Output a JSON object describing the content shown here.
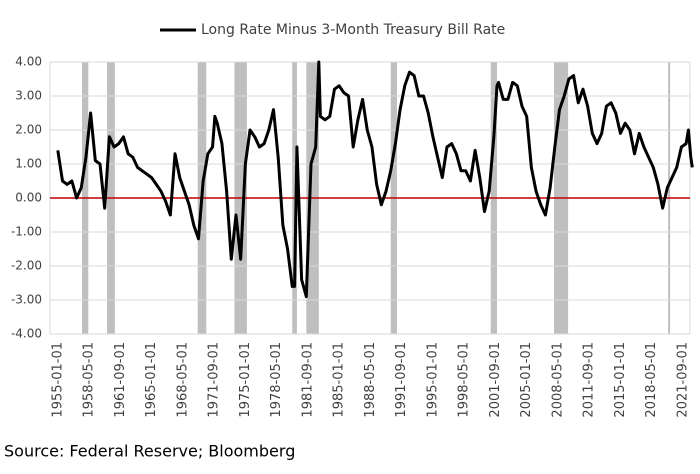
{
  "chart_data": {
    "type": "line",
    "legend": "Long Rate Minus 3-Month Treasury Bill Rate",
    "source": "Source: Federal Reserve; Bloomberg",
    "series": [
      {
        "name": "Long Rate Minus 3-Month Treasury Bill Rate",
        "color": "#000000",
        "x": [
          "1955-01-01",
          "1955-07-01",
          "1956-01-01",
          "1956-07-01",
          "1957-01-01",
          "1957-07-01",
          "1958-01-01",
          "1958-07-01",
          "1959-01-01",
          "1959-07-01",
          "1960-01-01",
          "1960-07-01",
          "1961-01-01",
          "1961-07-01",
          "1962-01-01",
          "1962-07-01",
          "1963-01-01",
          "1963-07-01",
          "1964-01-01",
          "1964-07-01",
          "1965-01-01",
          "1965-07-01",
          "1966-01-01",
          "1966-07-01",
          "1967-01-01",
          "1967-07-01",
          "1968-01-01",
          "1968-07-01",
          "1969-01-01",
          "1969-07-01",
          "1970-01-01",
          "1970-07-01",
          "1971-01-01",
          "1971-07-01",
          "1971-10-01",
          "1972-01-01",
          "1972-07-01",
          "1973-01-01",
          "1973-07-01",
          "1974-01-01",
          "1974-07-01",
          "1975-01-01",
          "1975-07-01",
          "1976-01-01",
          "1976-07-01",
          "1977-01-01",
          "1977-07-01",
          "1978-01-01",
          "1978-07-01",
          "1979-01-01",
          "1979-07-01",
          "1980-01-01",
          "1980-04-01",
          "1980-07-01",
          "1981-01-01",
          "1981-07-01",
          "1982-01-01",
          "1982-07-01",
          "1982-11-01",
          "1983-01-01",
          "1983-07-01",
          "1984-01-01",
          "1984-07-01",
          "1985-01-01",
          "1985-07-01",
          "1986-01-01",
          "1986-07-01",
          "1987-01-01",
          "1987-07-01",
          "1988-01-01",
          "1988-07-01",
          "1989-01-01",
          "1989-07-01",
          "1990-01-01",
          "1990-07-01",
          "1991-01-01",
          "1991-07-01",
          "1992-01-01",
          "1992-07-01",
          "1993-01-01",
          "1993-07-01",
          "1994-01-01",
          "1994-07-01",
          "1995-01-01",
          "1995-07-01",
          "1996-01-01",
          "1996-07-01",
          "1997-01-01",
          "1997-07-01",
          "1998-01-01",
          "1998-07-01",
          "1999-01-01",
          "1999-07-01",
          "2000-01-01",
          "2000-07-01",
          "2001-01-01",
          "2001-07-01",
          "2001-11-01",
          "2002-01-01",
          "2002-07-01",
          "2003-01-01",
          "2003-07-01",
          "2004-01-01",
          "2004-07-01",
          "2005-01-01",
          "2005-07-01",
          "2006-01-01",
          "2006-07-01",
          "2007-01-01",
          "2007-07-01",
          "2008-01-01",
          "2008-07-01",
          "2009-01-01",
          "2009-07-01",
          "2010-01-01",
          "2010-07-01",
          "2011-01-01",
          "2011-07-01",
          "2012-01-01",
          "2012-07-01",
          "2013-01-01",
          "2013-07-01",
          "2014-01-01",
          "2014-07-01",
          "2015-01-01",
          "2015-07-01",
          "2016-01-01",
          "2016-07-01",
          "2017-01-01",
          "2017-07-01",
          "2018-01-01",
          "2018-07-01",
          "2019-01-01",
          "2019-07-01",
          "2020-01-01",
          "2020-07-01",
          "2021-01-01",
          "2021-07-01",
          "2022-01-01",
          "2022-04-01",
          "2022-07-01",
          "2022-09-01"
        ],
        "values": [
          1.4,
          0.5,
          0.4,
          0.5,
          0.0,
          0.3,
          1.2,
          2.5,
          1.1,
          1.0,
          -0.3,
          1.8,
          1.5,
          1.6,
          1.8,
          1.3,
          1.2,
          0.9,
          0.8,
          0.7,
          0.6,
          0.4,
          0.2,
          -0.1,
          -0.5,
          1.3,
          0.6,
          0.2,
          -0.2,
          -0.8,
          -1.2,
          0.5,
          1.3,
          1.5,
          2.4,
          2.2,
          1.6,
          0.2,
          -1.8,
          -0.5,
          -1.8,
          1.0,
          2.0,
          1.8,
          1.5,
          1.6,
          2.0,
          2.6,
          1.2,
          -0.8,
          -1.5,
          -2.6,
          -2.6,
          1.5,
          -2.4,
          -2.9,
          1.0,
          1.5,
          4.0,
          2.4,
          2.3,
          2.4,
          3.2,
          3.3,
          3.1,
          3.0,
          1.5,
          2.3,
          2.9,
          2.0,
          1.5,
          0.4,
          -0.2,
          0.2,
          0.8,
          1.6,
          2.6,
          3.3,
          3.7,
          3.6,
          3.0,
          3.0,
          2.5,
          1.8,
          1.2,
          0.6,
          1.5,
          1.6,
          1.3,
          0.8,
          0.8,
          0.5,
          1.4,
          0.6,
          -0.4,
          0.2,
          1.8,
          3.3,
          3.4,
          2.9,
          2.9,
          3.4,
          3.3,
          2.7,
          2.4,
          0.9,
          0.2,
          -0.2,
          -0.5,
          0.3,
          1.5,
          2.6,
          3.0,
          3.5,
          3.6,
          2.8,
          3.2,
          2.7,
          1.9,
          1.6,
          1.9,
          2.7,
          2.8,
          2.5,
          1.9,
          2.2,
          2.0,
          1.3,
          1.9,
          1.5,
          1.2,
          0.9,
          0.4,
          -0.3,
          0.3,
          0.6,
          0.9,
          1.5,
          1.6,
          2.0,
          1.2,
          0.9
        ]
      }
    ],
    "recessions": [
      [
        "1957-08-01",
        "1958-04-01"
      ],
      [
        "1960-04-01",
        "1961-02-01"
      ],
      [
        "1969-12-01",
        "1970-11-01"
      ],
      [
        "1973-11-01",
        "1975-03-01"
      ],
      [
        "1980-01-01",
        "1980-07-01"
      ],
      [
        "1981-07-01",
        "1982-11-01"
      ],
      [
        "1990-07-01",
        "1991-03-01"
      ],
      [
        "2001-03-01",
        "2001-11-01"
      ],
      [
        "2007-12-01",
        "2009-06-01"
      ],
      [
        "2020-02-01",
        "2020-04-01"
      ]
    ],
    "recession_color": "#bfbfbf",
    "axis_color": "#c00000",
    "xlim": [
      "1954-03-01",
      "2022-06-01"
    ],
    "xticks": [
      "1955-01-01",
      "1958-05-01",
      "1961-09-01",
      "1965-01-01",
      "1968-05-01",
      "1971-09-01",
      "1975-01-01",
      "1978-05-01",
      "1981-09-01",
      "1985-01-01",
      "1988-05-01",
      "1991-09-01",
      "1995-01-01",
      "1998-05-01",
      "2001-09-01",
      "2005-01-01",
      "2008-05-01",
      "2011-09-01",
      "2015-01-01",
      "2018-05-01",
      "2021-09-01"
    ],
    "ylim": [
      -4,
      4
    ],
    "yticks": [
      {
        "value": 4,
        "label": "4.00"
      },
      {
        "value": 3,
        "label": "3.00"
      },
      {
        "value": 2,
        "label": "2.00"
      },
      {
        "value": 1,
        "label": "1.00"
      },
      {
        "value": 0,
        "label": "0.00"
      },
      {
        "value": -1,
        "label": "-1.00"
      },
      {
        "value": -2,
        "label": "-2.00"
      },
      {
        "value": -3,
        "label": "-3.00"
      },
      {
        "value": -4,
        "label": "-4.00"
      }
    ],
    "grid": true
  }
}
